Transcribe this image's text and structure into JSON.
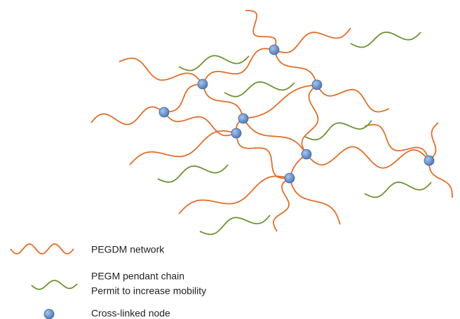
{
  "legend": {
    "network": "PEGDM network",
    "pendant": "PEGM pendant chain",
    "pendant_note": "Permit to increase mobility",
    "node": "Cross-linked node"
  }
}
